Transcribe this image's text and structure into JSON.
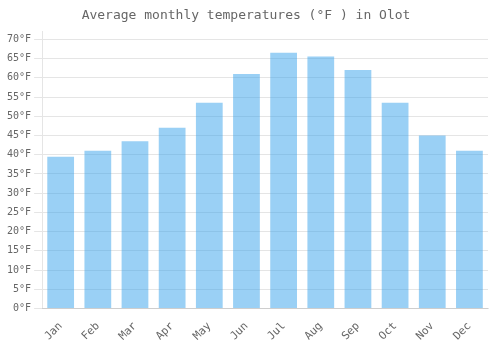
{
  "chart_data": {
    "type": "bar",
    "title": "Average monthly temperatures (°F ) in Olot",
    "categories": [
      "Jan",
      "Feb",
      "Mar",
      "Apr",
      "May",
      "Jun",
      "Jul",
      "Aug",
      "Sep",
      "Oct",
      "Nov",
      "Dec"
    ],
    "values": [
      39.5,
      41.0,
      43.5,
      47.0,
      53.5,
      61.0,
      66.5,
      65.5,
      62.0,
      53.5,
      45.0,
      41.0
    ],
    "ylim": [
      0,
      72
    ],
    "yticks": [
      {
        "value": 0,
        "label": "0°F"
      },
      {
        "value": 5,
        "label": "5°F"
      },
      {
        "value": 10,
        "label": "10°F"
      },
      {
        "value": 15,
        "label": "15°F"
      },
      {
        "value": 20,
        "label": "20°F"
      },
      {
        "value": 25,
        "label": "25°F"
      },
      {
        "value": 30,
        "label": "30°F"
      },
      {
        "value": 35,
        "label": "35°F"
      },
      {
        "value": 40,
        "label": "40°F"
      },
      {
        "value": 45,
        "label": "45°F"
      },
      {
        "value": 50,
        "label": "50°F"
      },
      {
        "value": 55,
        "label": "55°F"
      },
      {
        "value": 60,
        "label": "60°F"
      },
      {
        "value": 65,
        "label": "65°F"
      },
      {
        "value": 70,
        "label": "70°F"
      }
    ],
    "grid": true
  }
}
